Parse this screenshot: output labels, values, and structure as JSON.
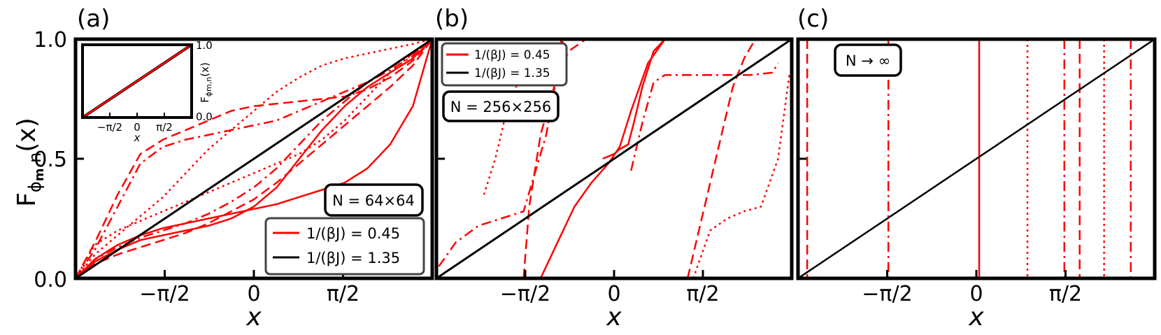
{
  "figure": {
    "ylabel": "F_{ϕm,n}(x)",
    "colors": {
      "red": "#ff0000",
      "black": "#000000"
    }
  },
  "chart_data": [
    {
      "type": "line",
      "panel": "(a)",
      "xlabel": "x",
      "ylabel": "F_{ϕm,n}(x)",
      "xlim": [
        -3.1416,
        3.1416
      ],
      "ylim": [
        0,
        1
      ],
      "xticks": [
        "−π/2",
        "0",
        "π/2"
      ],
      "yticks": [
        "0.0",
        "0.5",
        "1.0"
      ],
      "annotation": "N = 64×64",
      "legend": {
        "position": "lower-right",
        "entries": [
          "1/(βJ) = 0.45",
          "1/(βJ) = 1.35"
        ]
      },
      "inset": {
        "xticks": [
          "−π/2",
          "0",
          "π/2"
        ],
        "yticks": [
          "0.0",
          "1.0"
        ],
        "xlabel": "x",
        "ylabel": "F_{ϕm,n}(x)",
        "series": [
          {
            "color": "#000000",
            "style": "solid",
            "x": [
              -3.1416,
              3.1416
            ],
            "y": [
              0,
              1
            ]
          },
          {
            "color": "#ff0000",
            "style": "solid",
            "x": [
              -3.1416,
              3.1416
            ],
            "y": [
              0,
              1
            ]
          }
        ]
      },
      "series": [
        {
          "name": "1/(βJ) = 0.45",
          "color": "#ff0000",
          "style": "solid",
          "width": 2.5,
          "x": [
            -3.1416,
            -2.8,
            -2.4,
            -2.0,
            -1.6,
            -1.2,
            -0.8,
            -0.4,
            0,
            0.4,
            0.8,
            1.2,
            1.6,
            2.0,
            2.4,
            2.8,
            3.1416
          ],
          "y": [
            0,
            0.08,
            0.14,
            0.18,
            0.21,
            0.23,
            0.25,
            0.27,
            0.29,
            0.31,
            0.34,
            0.37,
            0.4,
            0.46,
            0.56,
            0.72,
            1.0
          ]
        },
        {
          "color": "#ff0000",
          "style": "solid",
          "width": 2.5,
          "x": [
            -3.1416,
            -2.8,
            -2.4,
            -2.0,
            -1.6,
            -1.2,
            -0.8,
            -0.4,
            0,
            0.4,
            0.8,
            1.2,
            1.6,
            2.0,
            2.4,
            2.8,
            3.1416
          ],
          "y": [
            0,
            0.07,
            0.12,
            0.16,
            0.18,
            0.2,
            0.22,
            0.25,
            0.3,
            0.38,
            0.5,
            0.62,
            0.72,
            0.8,
            0.86,
            0.92,
            1.0
          ]
        },
        {
          "color": "#ff0000",
          "style": "dashed",
          "width": 2.5,
          "x": [
            -3.1416,
            -2.8,
            -2.4,
            -2.0,
            -1.6,
            -1.2,
            -0.8,
            -0.4,
            0,
            0.4,
            0.8,
            1.2,
            1.6,
            2.0,
            2.4,
            2.8,
            3.1416
          ],
          "y": [
            0,
            0.15,
            0.35,
            0.52,
            0.58,
            0.62,
            0.66,
            0.7,
            0.72,
            0.73,
            0.74,
            0.75,
            0.76,
            0.79,
            0.84,
            0.91,
            1.0
          ]
        },
        {
          "color": "#ff0000",
          "style": "dashed",
          "width": 2.5,
          "x": [
            -3.1416,
            -2.8,
            -2.4,
            -2.0,
            -1.6,
            -1.2,
            -0.8,
            -0.4,
            0,
            0.4,
            0.8,
            1.2,
            1.6,
            2.0,
            2.4,
            2.8,
            3.1416
          ],
          "y": [
            0,
            0.06,
            0.1,
            0.13,
            0.16,
            0.19,
            0.23,
            0.28,
            0.33,
            0.4,
            0.48,
            0.56,
            0.64,
            0.72,
            0.8,
            0.89,
            1.0
          ]
        },
        {
          "color": "#ff0000",
          "style": "dashdot",
          "width": 2.5,
          "x": [
            -3.1416,
            -2.8,
            -2.4,
            -2.0,
            -1.6,
            -1.2,
            -0.8,
            -0.4,
            0,
            0.4,
            0.8,
            1.2,
            1.6,
            2.0,
            2.4,
            2.8,
            3.1416
          ],
          "y": [
            0,
            0.12,
            0.3,
            0.48,
            0.55,
            0.58,
            0.6,
            0.62,
            0.64,
            0.66,
            0.7,
            0.74,
            0.78,
            0.82,
            0.87,
            0.93,
            1.0
          ]
        },
        {
          "color": "#ff0000",
          "style": "dashdot",
          "width": 2.5,
          "x": [
            -3.1416,
            -2.8,
            -2.4,
            -2.0,
            -1.6,
            -1.2,
            -0.8,
            -0.4,
            0,
            0.4,
            0.8,
            1.2,
            1.6,
            2.0,
            2.4,
            2.8,
            3.1416
          ],
          "y": [
            0,
            0.08,
            0.13,
            0.17,
            0.2,
            0.23,
            0.27,
            0.32,
            0.38,
            0.46,
            0.56,
            0.66,
            0.74,
            0.82,
            0.88,
            0.94,
            1.0
          ]
        },
        {
          "color": "#ff0000",
          "style": "dotted",
          "width": 2.5,
          "x": [
            -3.1416,
            -2.8,
            -2.4,
            -2.0,
            -1.6,
            -1.2,
            -0.8,
            -0.4,
            0,
            0.4,
            0.8,
            1.2,
            1.6,
            2.0,
            2.4,
            2.8,
            3.1416
          ],
          "y": [
            0,
            0.14,
            0.2,
            0.24,
            0.28,
            0.32,
            0.36,
            0.4,
            0.44,
            0.48,
            0.52,
            0.58,
            0.66,
            0.76,
            0.86,
            0.94,
            1.0
          ]
        },
        {
          "color": "#ff0000",
          "style": "dotted",
          "width": 2.5,
          "x": [
            -3.1416,
            -2.8,
            -2.4,
            -2.0,
            -1.6,
            -1.2,
            -0.8,
            -0.4,
            0,
            0.4,
            0.8,
            1.2,
            1.6,
            2.0,
            2.4,
            2.8,
            3.1416
          ],
          "y": [
            0,
            0.1,
            0.18,
            0.26,
            0.34,
            0.44,
            0.54,
            0.62,
            0.7,
            0.78,
            0.84,
            0.89,
            0.92,
            0.94,
            0.96,
            0.98,
            1.0
          ]
        },
        {
          "name": "1/(βJ) = 1.35",
          "color": "#000000",
          "style": "solid",
          "width": 3,
          "x": [
            -3.1416,
            3.1416
          ],
          "y": [
            0,
            1
          ]
        }
      ]
    },
    {
      "type": "line",
      "panel": "(b)",
      "xlabel": "x",
      "xlim": [
        -3.1416,
        3.1416
      ],
      "ylim": [
        0,
        1
      ],
      "xticks": [
        "−π/2",
        "0",
        "π/2"
      ],
      "annotation": "N = 256×256",
      "legend": {
        "position": "upper-left",
        "entries": [
          "1/(βJ) = 0.45",
          "1/(βJ) = 1.35"
        ]
      },
      "series": [
        {
          "name": "1/(βJ) = 0.45",
          "color": "#ff0000",
          "style": "solid",
          "width": 2.5,
          "x": [
            -1.3,
            -1.0,
            -0.7,
            -0.4,
            -0.1,
            0.1,
            0.3,
            0.6,
            0.9,
            1.0
          ],
          "y": [
            0.0,
            0.15,
            0.3,
            0.4,
            0.48,
            0.55,
            0.7,
            0.9,
            1.0,
            1.0
          ]
        },
        {
          "color": "#ff0000",
          "style": "solid",
          "width": 2.5,
          "x": [
            -0.2,
            0.0,
            0.1,
            0.25,
            0.35,
            0.5,
            0.7,
            0.9
          ],
          "y": [
            0.5,
            0.52,
            0.54,
            0.56,
            0.65,
            0.8,
            0.95,
            1.0
          ]
        },
        {
          "color": "#ff0000",
          "style": "dashed",
          "width": 2.5,
          "x": [
            -1.6,
            -1.5,
            -1.3,
            -1.0,
            -0.8,
            -0.5
          ],
          "y": [
            0.0,
            0.3,
            0.6,
            0.85,
            0.95,
            1.0
          ]
        },
        {
          "color": "#ff0000",
          "style": "dashed",
          "width": 2.5,
          "x": [
            1.3,
            1.6,
            1.9,
            2.1,
            2.3,
            2.5
          ],
          "y": [
            0.0,
            0.3,
            0.6,
            0.8,
            0.92,
            1.0
          ]
        },
        {
          "color": "#ff0000",
          "style": "dashdot",
          "width": 2.5,
          "x": [
            -3.1,
            -2.8,
            -2.4,
            -2.0,
            -1.6,
            -1.2,
            -0.9
          ],
          "y": [
            0.05,
            0.15,
            0.22,
            0.25,
            0.28,
            0.6,
            1.0
          ]
        },
        {
          "color": "#ff0000",
          "style": "dashdot",
          "width": 2.5,
          "x": [
            0.3,
            0.5,
            0.7,
            0.9,
            2.4,
            2.8,
            2.9
          ],
          "y": [
            0.45,
            0.65,
            0.82,
            0.85,
            0.85,
            0.86,
            0.9
          ]
        },
        {
          "color": "#ff0000",
          "style": "dotted",
          "width": 2.5,
          "x": [
            -2.3,
            -2.1,
            -1.9,
            -1.6,
            -1.2,
            -0.8
          ],
          "y": [
            0.35,
            0.5,
            0.7,
            0.88,
            0.97,
            1.0
          ]
        },
        {
          "color": "#ff0000",
          "style": "dotted",
          "width": 2.5,
          "x": [
            1.4,
            1.7,
            2.0,
            2.3,
            2.6,
            2.9,
            3.1
          ],
          "y": [
            0.0,
            0.2,
            0.25,
            0.28,
            0.3,
            0.5,
            0.85
          ]
        },
        {
          "name": "1/(βJ) = 1.35",
          "color": "#000000",
          "style": "solid",
          "width": 3,
          "x": [
            -3.1416,
            3.1416
          ],
          "y": [
            0,
            1
          ]
        }
      ]
    },
    {
      "type": "line",
      "panel": "(c)",
      "xlabel": "x",
      "xlim": [
        -3.1416,
        3.1416
      ],
      "ylim": [
        0,
        1
      ],
      "xticks": [
        "−π/2",
        "0",
        "π/2"
      ],
      "annotation": "N → ∞",
      "vertical_lines": [
        {
          "x": -2.98,
          "color": "#ff0000",
          "style": "dashed"
        },
        {
          "x": -1.55,
          "color": "#ff0000",
          "style": "dashdot"
        },
        {
          "x": 0.05,
          "color": "#ff0000",
          "style": "solid"
        },
        {
          "x": 0.9,
          "color": "#ff0000",
          "style": "dotted"
        },
        {
          "x": 1.55,
          "color": "#ff0000",
          "style": "dashdot"
        },
        {
          "x": 1.82,
          "color": "#ff0000",
          "style": "dashed"
        },
        {
          "x": 2.25,
          "color": "#ff0000",
          "style": "dotted"
        },
        {
          "x": 2.72,
          "color": "#ff0000",
          "style": "dashdot"
        }
      ],
      "series": [
        {
          "color": "#000000",
          "style": "solid",
          "width": 2.5,
          "x": [
            -3.1416,
            3.1416
          ],
          "y": [
            0,
            1
          ]
        }
      ]
    }
  ]
}
